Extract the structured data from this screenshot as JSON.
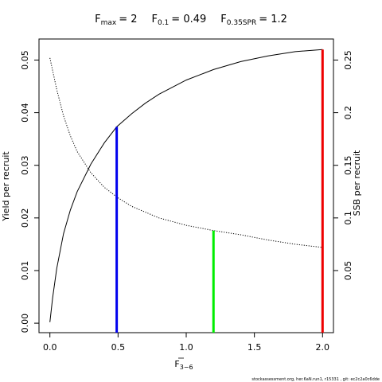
{
  "chart_data": {
    "type": "line",
    "title": {
      "fmax_label": "F",
      "fmax_sub": "max",
      "fmax_value": "= 2",
      "f01_label": "F",
      "f01_sub": "0.1",
      "f01_value": "= 0.49",
      "fspr_label": "F",
      "fspr_sub": "0.35SPR",
      "fspr_value": "= 1.2"
    },
    "xlabel": "F",
    "xlabel_sub": "3−6",
    "ylabel_left": "Yield per recruit",
    "ylabel_right": "SSB per recruit",
    "xlim": [
      -0.08,
      2.08
    ],
    "ylim_left": [
      -0.0018,
      0.054
    ],
    "ylim_right": [
      -0.009,
      0.27
    ],
    "x_ticks": [
      0,
      0.5,
      1.0,
      1.5,
      2.0
    ],
    "x_tick_labels": [
      "0.0",
      "0.5",
      "1.0",
      "1.5",
      "2.0"
    ],
    "y_left_ticks": [
      0,
      0.01,
      0.02,
      0.03,
      0.04,
      0.05
    ],
    "y_left_tick_labels": [
      "0.00",
      "0.01",
      "0.02",
      "0.03",
      "0.04",
      "0.05"
    ],
    "y_right_ticks": [
      0.05,
      0.1,
      0.15,
      0.2,
      0.25
    ],
    "y_right_tick_labels": [
      "0.05",
      "0.1",
      "0.15",
      "0.2",
      "0.25"
    ],
    "series": [
      {
        "axis": "left",
        "style": "solid",
        "color": "#000000",
        "x": [
          0,
          0.02,
          0.05,
          0.1,
          0.15,
          0.2,
          0.3,
          0.4,
          0.49,
          0.6,
          0.7,
          0.8,
          1.0,
          1.2,
          1.4,
          1.6,
          1.8,
          2.0
        ],
        "y": [
          0.0002,
          0.0048,
          0.0104,
          0.017,
          0.0215,
          0.025,
          0.0302,
          0.0343,
          0.0373,
          0.0398,
          0.0418,
          0.0435,
          0.0462,
          0.0482,
          0.0497,
          0.0508,
          0.0516,
          0.052
        ]
      },
      {
        "axis": "right",
        "style": "dotted",
        "color": "#000000",
        "x": [
          0,
          0.05,
          0.1,
          0.15,
          0.2,
          0.3,
          0.4,
          0.5,
          0.6,
          0.8,
          1.0,
          1.2,
          1.4,
          1.6,
          1.8,
          2.0
        ],
        "y": [
          0.252,
          0.222,
          0.197,
          0.178,
          0.163,
          0.143,
          0.129,
          0.119,
          0.111,
          0.1,
          0.093,
          0.088,
          0.084,
          0.079,
          0.075,
          0.072
        ]
      }
    ],
    "reference_lines": [
      {
        "x": 0.49,
        "axis": "left",
        "y": 0.0373,
        "color": "#0000ee"
      },
      {
        "x": 1.2,
        "axis": "right",
        "y": 0.088,
        "color": "#00ee00"
      },
      {
        "x": 2.0,
        "axis": "left",
        "y": 0.052,
        "color": "#ee0000"
      }
    ],
    "footer": "stockassessment.org, her.6aN.run1, r15331 , git: ec2c2a0c6dde"
  }
}
